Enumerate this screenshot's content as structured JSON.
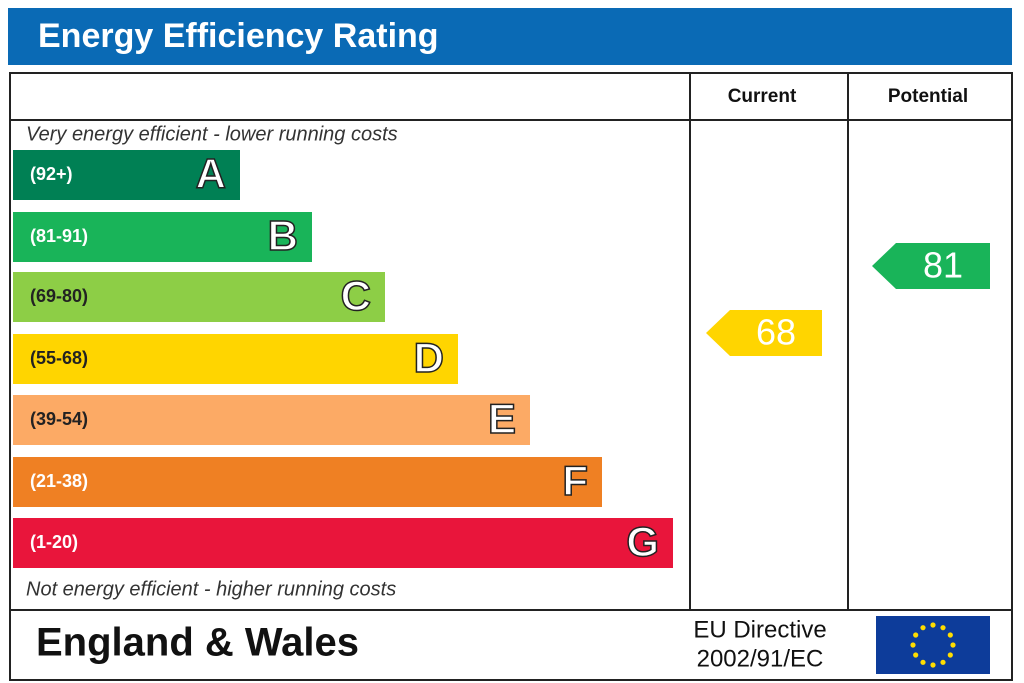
{
  "header": {
    "title": "Energy Efficiency Rating",
    "columns": [
      "Current",
      "Potential"
    ]
  },
  "top_note": "Very energy efficient - lower running costs",
  "bands": [
    {
      "range": "(92+)",
      "letter": "A",
      "color": "#008054"
    },
    {
      "range": "(81-91)",
      "letter": "B",
      "color": "#19b459"
    },
    {
      "range": "(69-80)",
      "letter": "C",
      "color": "#8dce46"
    },
    {
      "range": "(55-68)",
      "letter": "D",
      "color": "#ffd500"
    },
    {
      "range": "(39-54)",
      "letter": "E",
      "color": "#fcaa65"
    },
    {
      "range": "(21-38)",
      "letter": "F",
      "color": "#ef8023"
    },
    {
      "range": "(1-20)",
      "letter": "G",
      "color": "#e9153b"
    }
  ],
  "bottom_note": "Not energy efficient - higher running costs",
  "current": {
    "value": 68,
    "color": "#ffd500"
  },
  "potential": {
    "value": 81,
    "color": "#19b459"
  },
  "footer": {
    "region": "England & Wales",
    "directive": [
      "EU Directive",
      "2002/91/EC"
    ]
  }
}
